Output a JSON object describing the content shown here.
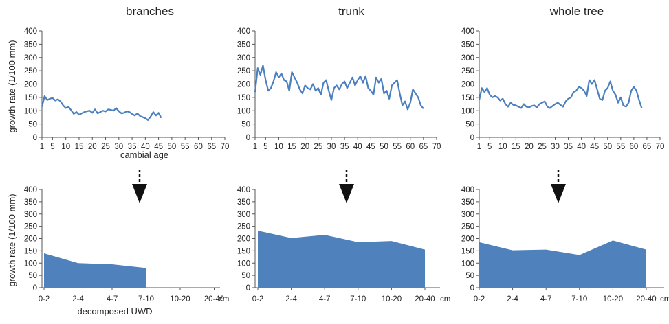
{
  "titles": [
    "branches",
    "trunk",
    "whole tree"
  ],
  "ylabel": "growth rate (1/100 mm)",
  "xlabel_top": "cambial age",
  "xlabel_bottom": "decomposed UWD",
  "unit_suffix": "cm",
  "colors": {
    "line": "#4a7fc0",
    "area": "#4f81bd",
    "axis": "#555555",
    "arrow": "#111111"
  },
  "chart_data": [
    {
      "type": "line",
      "panel": "branches",
      "title": "branches",
      "xlabel": "cambial age",
      "ylabel": "growth rate (1/100 mm)",
      "xlim": [
        1,
        70
      ],
      "ylim": [
        0,
        400
      ],
      "xticks": [
        1,
        5,
        10,
        15,
        20,
        25,
        30,
        35,
        40,
        45,
        50,
        55,
        60,
        65,
        70
      ],
      "yticks": [
        0,
        50,
        100,
        150,
        200,
        250,
        300,
        350,
        400
      ],
      "series": [
        {
          "values": [
            115,
            155,
            140,
            145,
            148,
            138,
            143,
            135,
            120,
            110,
            115,
            102,
            88,
            95,
            85,
            90,
            95,
            98,
            100,
            92,
            105,
            90,
            95,
            100,
            97,
            105,
            103,
            100,
            110,
            98,
            90,
            92,
            98,
            95,
            88,
            82,
            90,
            80,
            76,
            72,
            65,
            78,
            95,
            82,
            92,
            73
          ]
        }
      ]
    },
    {
      "type": "line",
      "panel": "trunk",
      "title": "trunk",
      "xlabel": "cambial age",
      "ylabel": "growth rate (1/100 mm)",
      "xlim": [
        1,
        70
      ],
      "ylim": [
        0,
        400
      ],
      "xticks": [
        1,
        5,
        10,
        15,
        20,
        25,
        30,
        35,
        40,
        45,
        50,
        55,
        60,
        65,
        70
      ],
      "yticks": [
        0,
        50,
        100,
        150,
        200,
        250,
        300,
        350,
        400
      ],
      "series": [
        {
          "values": [
            170,
            260,
            235,
            270,
            215,
            175,
            185,
            210,
            245,
            225,
            240,
            215,
            210,
            175,
            245,
            225,
            205,
            180,
            165,
            195,
            185,
            180,
            200,
            175,
            185,
            160,
            205,
            215,
            175,
            140,
            185,
            195,
            180,
            200,
            210,
            185,
            205,
            225,
            195,
            215,
            230,
            205,
            230,
            185,
            175,
            160,
            225,
            205,
            220,
            165,
            175,
            145,
            195,
            205,
            215,
            165,
            120,
            135,
            105,
            130,
            180,
            165,
            150,
            120,
            108
          ]
        }
      ]
    },
    {
      "type": "line",
      "panel": "whole tree",
      "title": "whole tree",
      "xlabel": "",
      "ylabel": "growth rate (1/100 mm)",
      "xlim": [
        1,
        70
      ],
      "ylim": [
        0,
        400
      ],
      "xticks": [
        1,
        5,
        10,
        15,
        20,
        25,
        30,
        35,
        40,
        45,
        50,
        55,
        60,
        65,
        70
      ],
      "yticks": [
        0,
        50,
        100,
        150,
        200,
        250,
        300,
        350,
        400
      ],
      "series": [
        {
          "values": [
            140,
            185,
            170,
            185,
            160,
            150,
            155,
            150,
            138,
            145,
            125,
            115,
            130,
            122,
            120,
            115,
            110,
            125,
            115,
            112,
            118,
            120,
            112,
            125,
            130,
            135,
            115,
            110,
            118,
            125,
            130,
            122,
            115,
            135,
            145,
            150,
            170,
            175,
            190,
            185,
            175,
            155,
            215,
            200,
            215,
            180,
            145,
            140,
            175,
            185,
            210,
            175,
            160,
            130,
            150,
            120,
            115,
            130,
            175,
            190,
            175,
            140,
            110
          ]
        }
      ]
    },
    {
      "type": "area",
      "panel": "branches",
      "xlabel": "decomposed UWD",
      "ylabel": "growth rate (1/100 mm)",
      "categories": [
        "0-2",
        "2-4",
        "4-7",
        "7-10",
        "10-20",
        "20-40"
      ],
      "ylim": [
        0,
        400
      ],
      "yticks": [
        0,
        50,
        100,
        150,
        200,
        250,
        300,
        350,
        400
      ],
      "series": [
        {
          "values": [
            140,
            100,
            95,
            80,
            null,
            null
          ]
        }
      ]
    },
    {
      "type": "area",
      "panel": "trunk",
      "xlabel": "",
      "ylabel": "",
      "categories": [
        "0-2",
        "2-4",
        "4-7",
        "7-10",
        "10-20",
        "20-40"
      ],
      "ylim": [
        0,
        400
      ],
      "yticks": [
        0,
        50,
        100,
        150,
        200,
        250,
        300,
        350,
        400
      ],
      "series": [
        {
          "values": [
            232,
            202,
            215,
            185,
            190,
            155
          ]
        }
      ]
    },
    {
      "type": "area",
      "panel": "whole tree",
      "xlabel": "",
      "ylabel": "",
      "categories": [
        "0-2",
        "2-4",
        "4-7",
        "7-10",
        "10-20",
        "20-40"
      ],
      "ylim": [
        0,
        400
      ],
      "yticks": [
        0,
        50,
        100,
        150,
        200,
        250,
        300,
        350,
        400
      ],
      "series": [
        {
          "values": [
            185,
            152,
            155,
            133,
            192,
            155
          ]
        }
      ]
    }
  ]
}
